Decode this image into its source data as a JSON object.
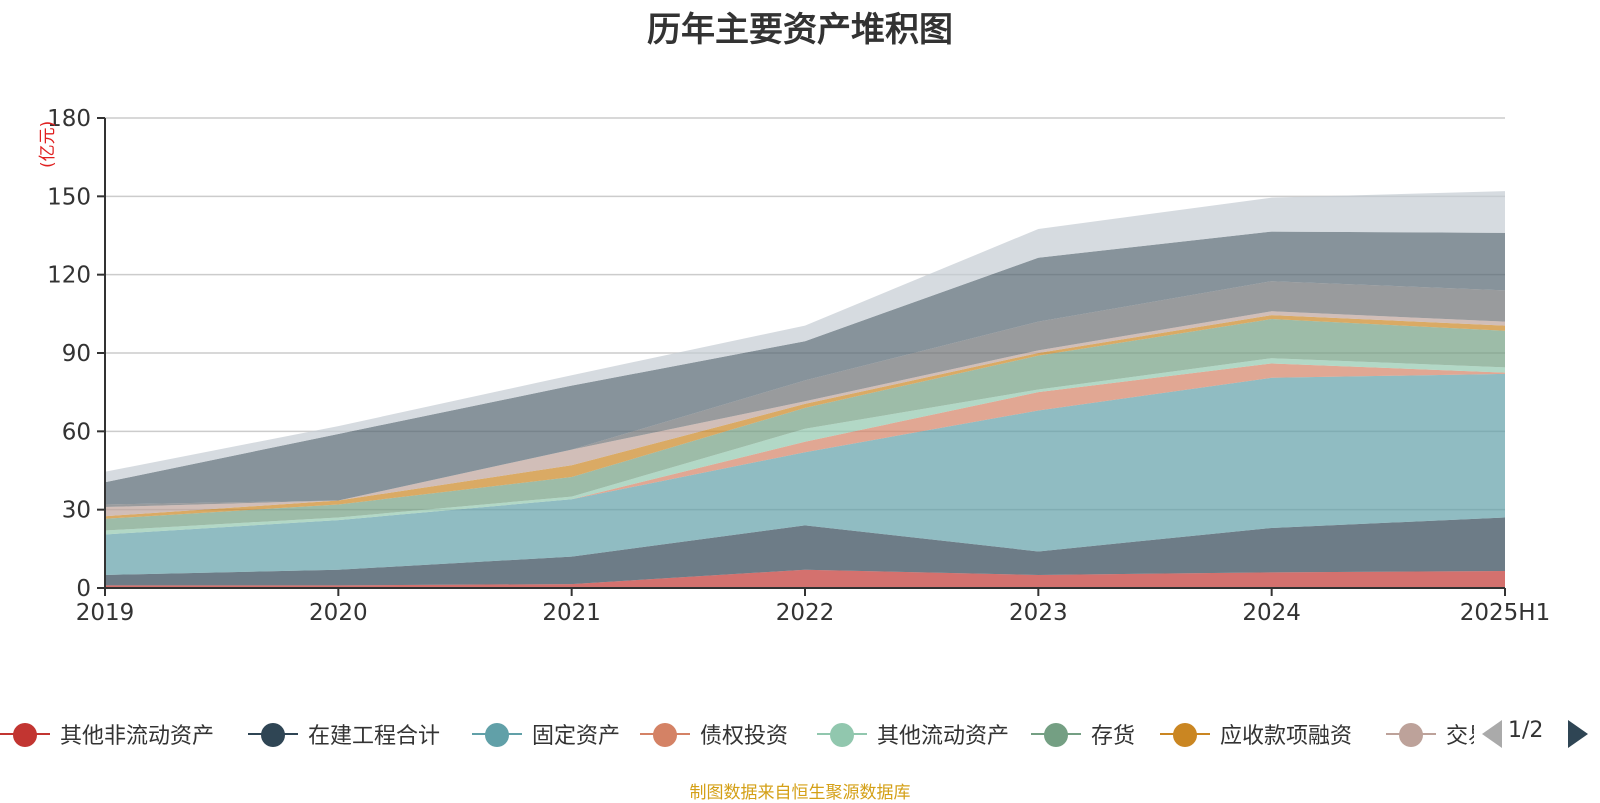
{
  "title": "历年主要资产堆积图",
  "source": "制图数据来自恒生聚源数据库",
  "pager": {
    "text": "1/2"
  },
  "chart_data": {
    "type": "area",
    "stacked": true,
    "title": "历年主要资产堆积图",
    "ylabel": "(亿元)",
    "ylim": [
      0,
      180
    ],
    "yticks": [
      "0",
      "30",
      "60",
      "90",
      "120",
      "150",
      "180"
    ],
    "categories": [
      "2019",
      "2020",
      "2021",
      "2022",
      "2023",
      "2024",
      "2025H1"
    ],
    "grid": true,
    "legend_position": "bottom",
    "series": [
      {
        "name": "其他非流动资产",
        "color": "#c23531",
        "values": [
          1,
          1,
          1.5,
          7,
          5,
          6,
          6.5
        ]
      },
      {
        "name": "在建工程合计",
        "color": "#2f4554",
        "values": [
          4,
          6,
          10.5,
          17,
          9,
          17,
          20.5
        ]
      },
      {
        "name": "固定资产",
        "color": "#61a0a8",
        "values": [
          15.5,
          19,
          22,
          28,
          54,
          57.5,
          55
        ]
      },
      {
        "name": "债权投资",
        "color": "#d48265",
        "values": [
          0,
          0,
          0,
          4,
          7,
          5.5,
          0.5
        ]
      },
      {
        "name": "其他流动资产",
        "color": "#91c7ae",
        "values": [
          1.5,
          1,
          1,
          5,
          1,
          2,
          2
        ]
      },
      {
        "name": "存货",
        "color": "#749f83",
        "values": [
          4.5,
          5,
          7.5,
          8,
          13,
          15,
          14
        ]
      },
      {
        "name": "应收款项融资",
        "color": "#ca8622",
        "values": [
          1,
          1.5,
          4.5,
          1.5,
          1,
          1.5,
          2
        ]
      },
      {
        "name": "交易性金融资产",
        "color": "#bda29a",
        "values": [
          3.5,
          0,
          6,
          1,
          1,
          1.5,
          1.5
        ]
      },
      {
        "name": "",
        "color": "#6e7074",
        "values": [
          1,
          0,
          0,
          8,
          11,
          11.5,
          12
        ]
      },
      {
        "name": "",
        "color": "#546570",
        "values": [
          8.5,
          25.5,
          24.5,
          15,
          24.5,
          19,
          22
        ]
      },
      {
        "name": "",
        "color": "#c4ccd3",
        "values": [
          4,
          3,
          4,
          6,
          11,
          13,
          16
        ]
      }
    ]
  }
}
